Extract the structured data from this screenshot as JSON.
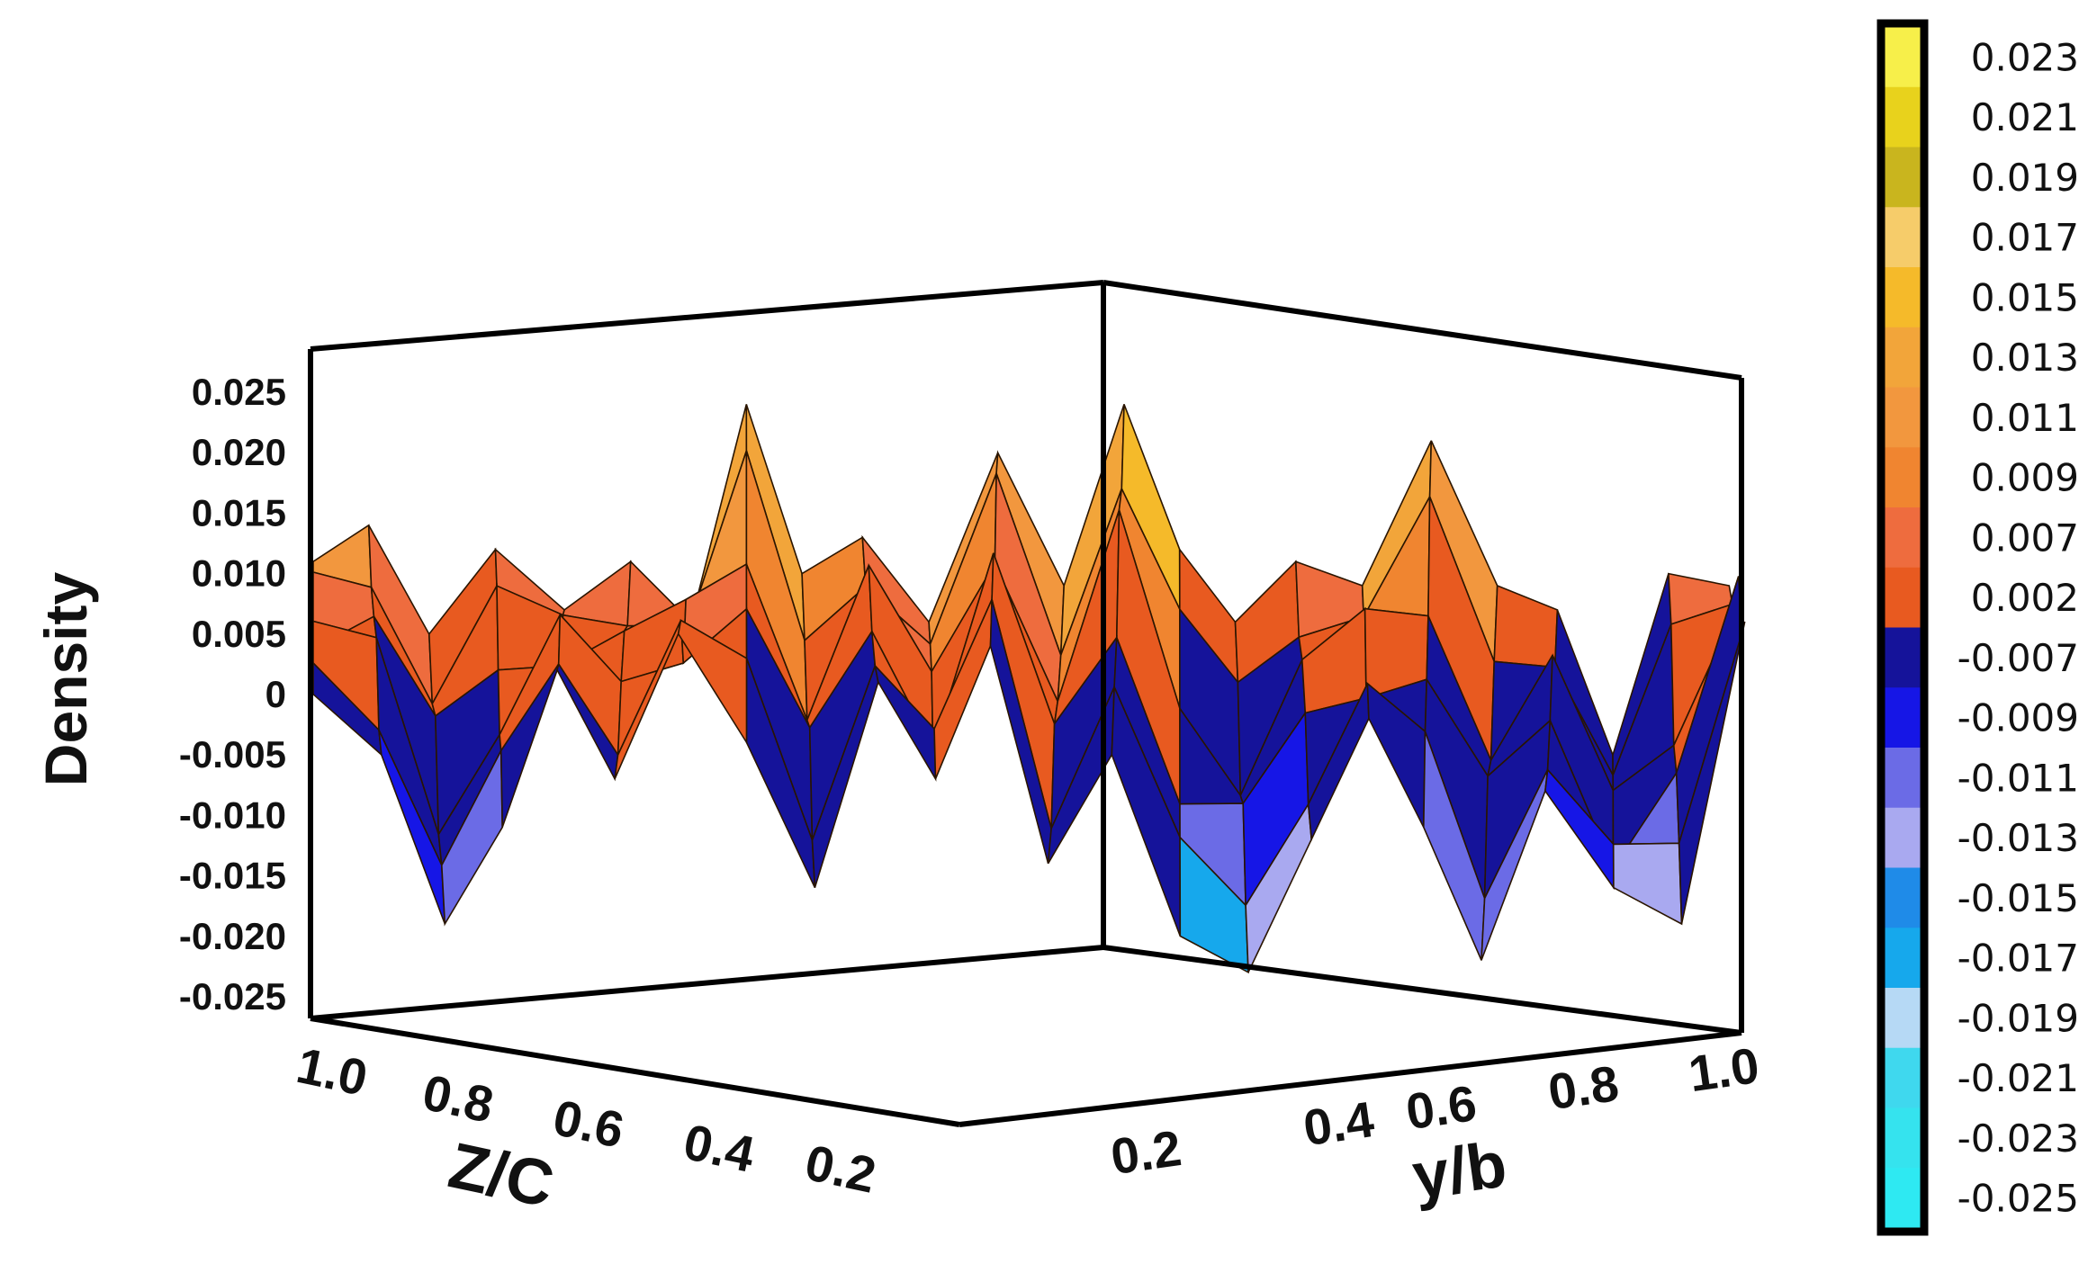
{
  "chart_data": {
    "type": "surface",
    "zlabel": "Density",
    "xlabel": "Z/C",
    "ylabel": "y/b",
    "zlim": [
      -0.025,
      0.025
    ],
    "z_ticks": [
      "0.025",
      "0.020",
      "0.015",
      "0.010",
      "0.005",
      "0",
      "-0.005",
      "-0.010",
      "-0.015",
      "-0.020",
      "-0.025"
    ],
    "x_ticks": [
      "1.0",
      "0.8",
      "0.6",
      "0.4",
      "0.2"
    ],
    "y_ticks": [
      "0.2",
      "0.4",
      "0.6",
      "0.8",
      "1.0"
    ],
    "colorbar": {
      "labels": [
        "0.023",
        "0.021",
        "0.019",
        "0.017",
        "0.015",
        "0.013",
        "0.011",
        "0.009",
        "0.007",
        "0.002",
        "-0.007",
        "-0.009",
        "-0.011",
        "-0.013",
        "-0.015",
        "-0.017",
        "-0.019",
        "-0.021",
        "-0.023",
        "-0.025"
      ],
      "colors": [
        "#f7ef4a",
        "#e8d21c",
        "#c9b51e",
        "#f6cc6a",
        "#f5ba2a",
        "#f2a53a",
        "#f2973e",
        "#f08530",
        "#ee6c3e",
        "#e85a20",
        "#15139a",
        "#1616e6",
        "#6b6be6",
        "#a9a9f0",
        "#1f8be8",
        "#16a8ec",
        "#b6d9f5",
        "#3fd8ee",
        "#35e3ee",
        "#2ee9f2"
      ]
    },
    "surface_profiles": {
      "back_ridge": [
        0.011,
        0.014,
        0.005,
        0.012,
        0.007,
        0.011,
        0.006,
        0.024,
        0.01,
        0.013,
        0.006,
        0.02,
        0.009,
        0.024,
        0.012,
        0.006,
        0.011,
        0.009,
        0.021,
        0.009,
        0.007,
        -0.005,
        0.01,
        0.009
      ],
      "front_ridge": [
        0.003,
        -0.002,
        -0.016,
        -0.008,
        0.005,
        -0.004,
        0.008,
        -0.001,
        -0.013,
        0.004,
        -0.004,
        0.007,
        -0.011,
        -0.002,
        -0.017,
        -0.02,
        -0.009,
        0.001,
        -0.008,
        -0.019,
        -0.005,
        -0.013,
        -0.016,
        0.009
      ]
    }
  }
}
